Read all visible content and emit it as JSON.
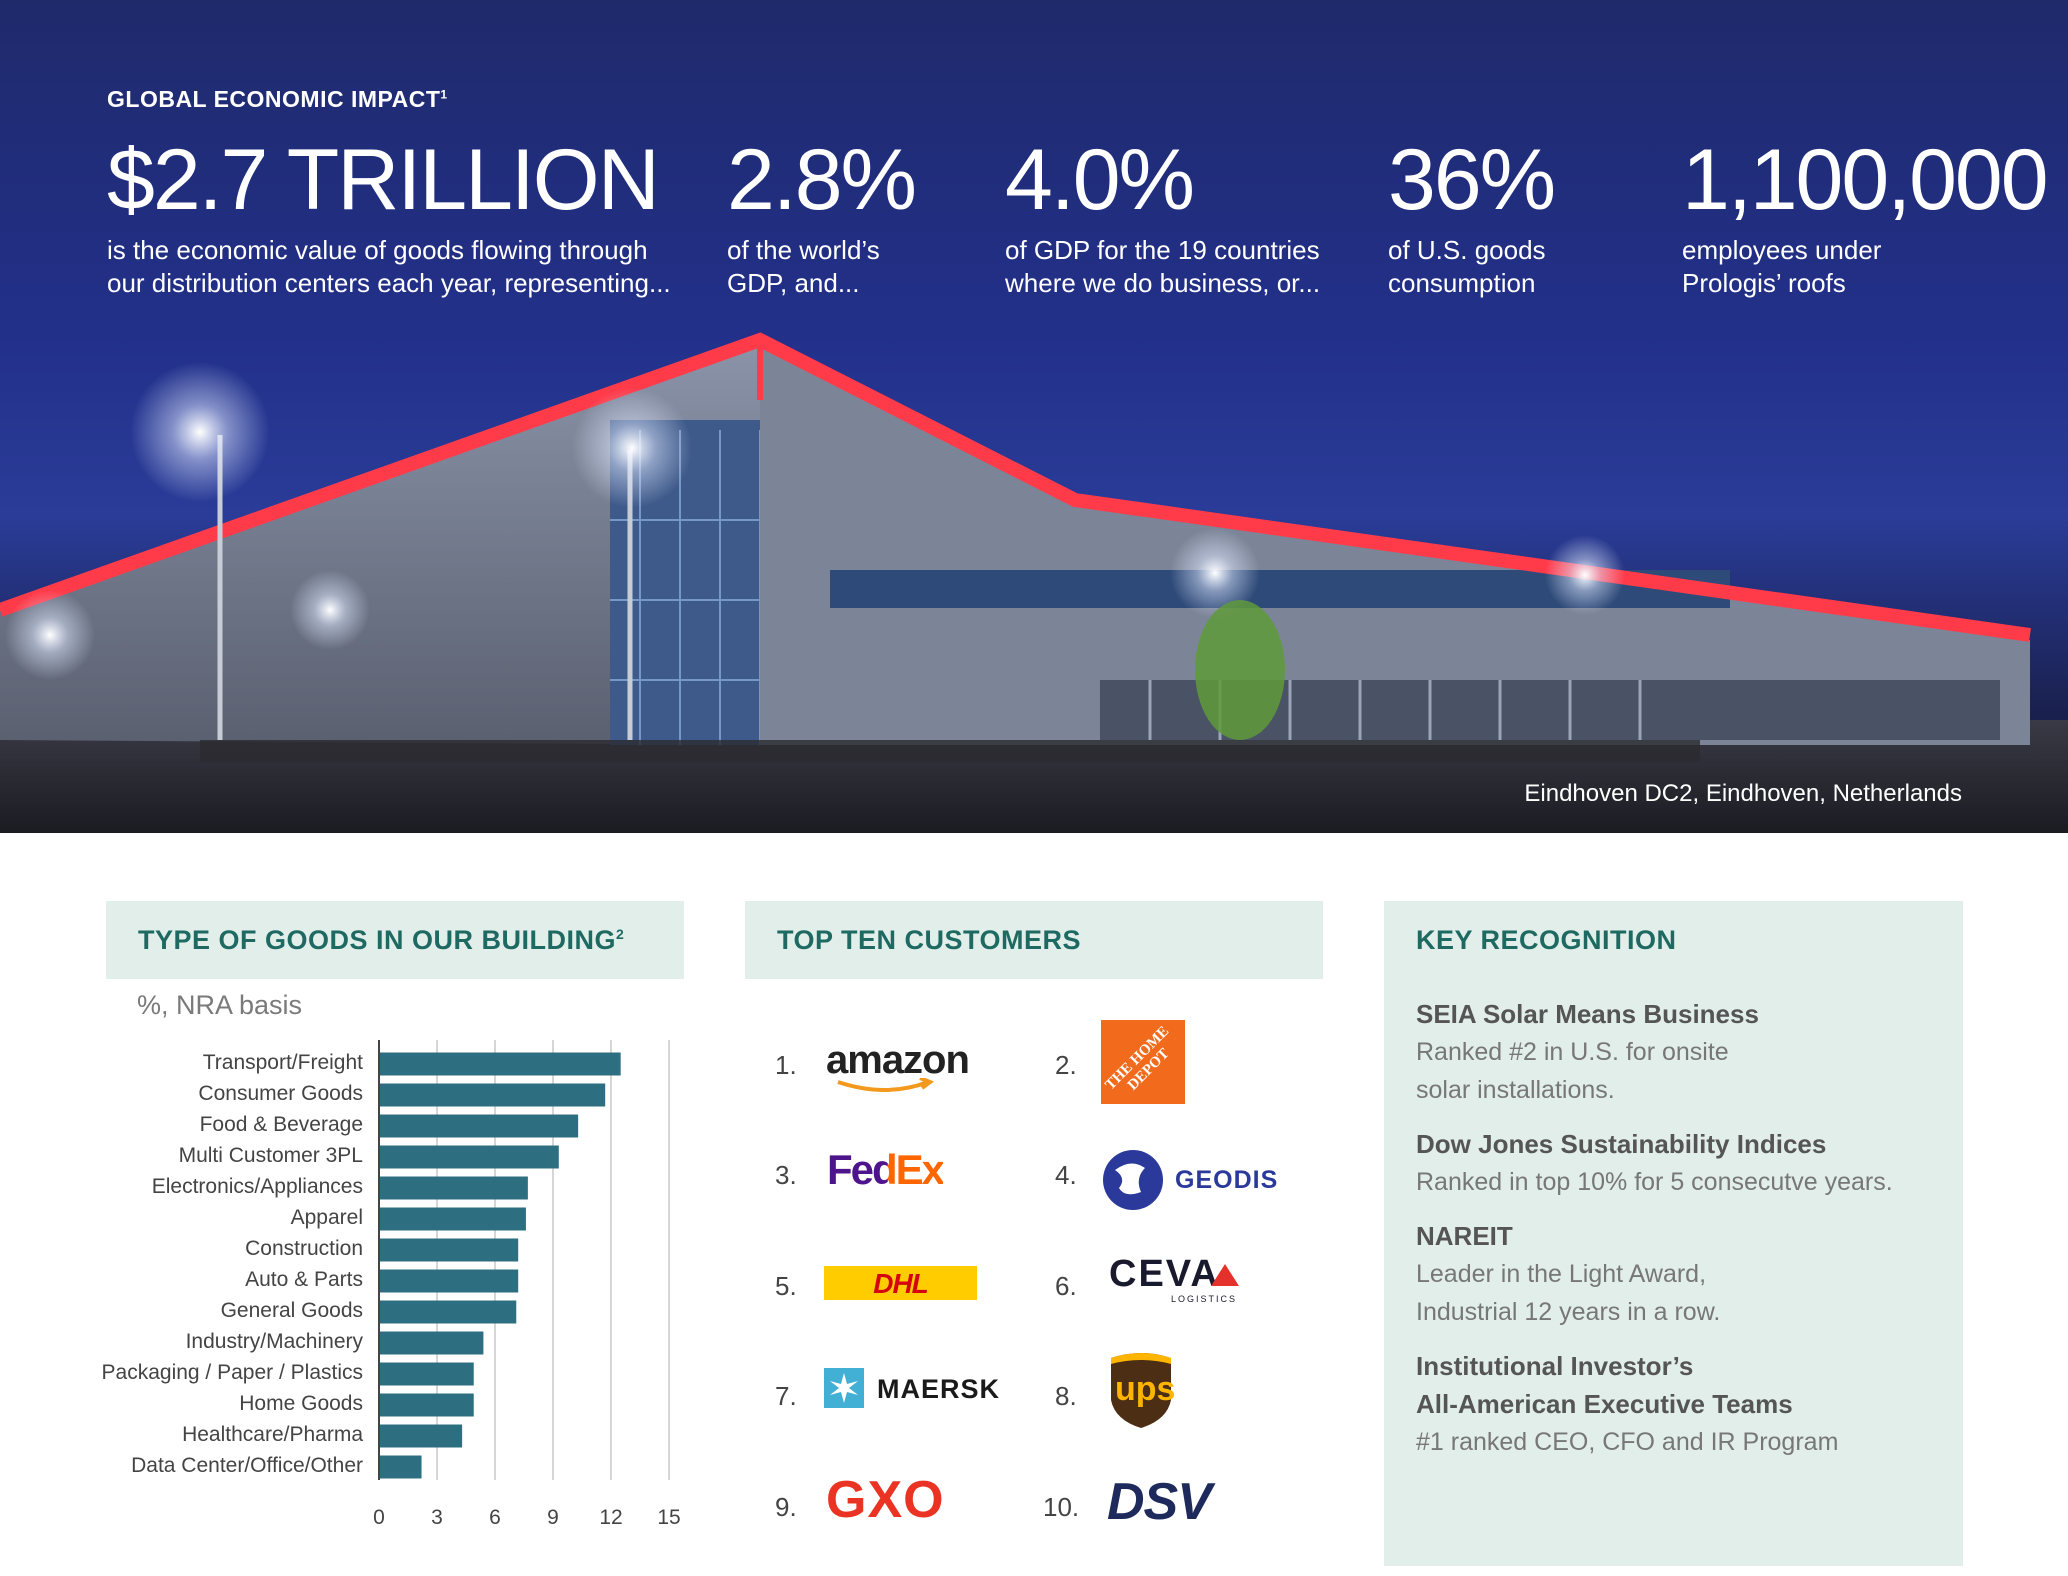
{
  "hero": {
    "eyebrow": "GLOBAL ECONOMIC IMPACT",
    "eyebrow_sup": "1",
    "stats": [
      {
        "value": "$2.7 TRILLION",
        "desc": "is the economic value of goods flowing through\nour distribution centers each year, representing..."
      },
      {
        "value": "2.8%",
        "desc": "of the world’s\nGDP, and..."
      },
      {
        "value": "4.0%",
        "desc": "of GDP for the 19 countries\nwhere we do business, or..."
      },
      {
        "value": "36%",
        "desc": "of U.S. goods\nconsumption"
      },
      {
        "value": "1,100,000",
        "desc": "employees under\nPrologis’ roofs"
      }
    ],
    "photo_caption": "Eindhoven DC2, Eindhoven, Netherlands"
  },
  "goods": {
    "title": "TYPE OF GOODS IN OUR BUILDING",
    "title_sup": "2",
    "subtitle": "%, NRA basis"
  },
  "chart_data": {
    "type": "bar",
    "orientation": "horizontal",
    "categories": [
      "Transport/Freight",
      "Consumer Goods",
      "Food & Beverage",
      "Multi Customer 3PL",
      "Electronics/Appliances",
      "Apparel",
      "Construction",
      "Auto & Parts",
      "General Goods",
      "Industry/Machinery",
      "Packaging / Paper / Plastics",
      "Home Goods",
      "Healthcare/Pharma",
      "Data Center/Office/Other"
    ],
    "values": [
      12.5,
      11.7,
      10.3,
      9.3,
      7.7,
      7.6,
      7.2,
      7.2,
      7.1,
      5.4,
      4.9,
      4.9,
      4.3,
      2.2
    ],
    "xlim": [
      0,
      15
    ],
    "xticks": [
      "0",
      "3",
      "6",
      "9",
      "12",
      "15"
    ],
    "grid": true,
    "color": "#2d6e80"
  },
  "customers": {
    "title": "TOP TEN CUSTOMERS",
    "items": [
      {
        "rank": "1.",
        "logo": "amazon"
      },
      {
        "rank": "2.",
        "logo": "THE HOME DEPOT"
      },
      {
        "rank": "3.",
        "logo": "FedEx"
      },
      {
        "rank": "4.",
        "logo": "GEODIS"
      },
      {
        "rank": "5.",
        "logo": "DHL"
      },
      {
        "rank": "6.",
        "logo": "CEVA",
        "sub": "LOGISTICS"
      },
      {
        "rank": "7.",
        "logo": "MAERSK"
      },
      {
        "rank": "8.",
        "logo": "ups"
      },
      {
        "rank": "9.",
        "logo": "GXO"
      },
      {
        "rank": "10.",
        "logo": "DSV"
      }
    ]
  },
  "recognition": {
    "title": "KEY RECOGNITION",
    "items": [
      {
        "heading": "SEIA Solar Means Business",
        "body": "Ranked #2 in U.S. for onsite\nsolar installations."
      },
      {
        "heading": "Dow Jones Sustainability Indices",
        "body": "Ranked in top 10% for 5 consecutve years."
      },
      {
        "heading": "NAREIT",
        "body": "Leader in the Light Award,\nIndustrial 12 years in a row."
      },
      {
        "heading": "Institutional Investor’s\nAll-American Executive Teams",
        "body": "#1 ranked CEO, CFO and IR Program"
      }
    ]
  },
  "colors": {
    "accent": "#1e6a62",
    "panel_bg": "#e2eeea",
    "bar": "#2d6e80",
    "hero_sky": "#22308a",
    "neon": "#ff3b4a"
  }
}
